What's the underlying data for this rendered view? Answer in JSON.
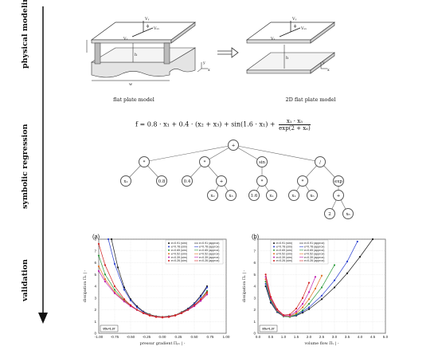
{
  "side_labels": {
    "physical": "physical modeling",
    "symbolic": "symbolic regression",
    "validation": "validation"
  },
  "physical": {
    "left_caption": "flat plate model",
    "right_caption": "2D flat plate model",
    "labels": {
      "vy": "Vᵧ",
      "vx": "Vₓ",
      "vs": "Vₛₓ",
      "phi": "ϕ",
      "h": "h",
      "w": "w",
      "y": "y",
      "x": "x",
      "z": "z"
    }
  },
  "symbolic": {
    "formula_lhs": "f = 0.8 · x₁ + 0.4 · (x₂ + x₃) + sin(1.6 · x₁) +",
    "formula_num": "x₁ · x₅",
    "formula_den": "exp(2 + x₆)",
    "nodes": {
      "root": "+",
      "a": "*",
      "b": "*",
      "c": "sin",
      "d": "/",
      "a1": "x₁",
      "a2": "0.8",
      "b1": "0.4",
      "b2": "+",
      "b21": "x₂",
      "b22": "x₃",
      "c1": "*",
      "c11": "1.6",
      "c12": "x₁",
      "d1": "*",
      "d2": "exp",
      "d11": "x₁",
      "d12": "x₅",
      "d21": "+",
      "d211": "2",
      "d212": "x₆"
    }
  },
  "validation": {
    "panel_a_label": "(a)",
    "panel_b_label": "(b)",
    "badge_a": "t/Dₕ=1.37",
    "badge_b": "t/Dₕ=1.37",
    "xlabel_a": "pressur gradient Πₚₓ | -",
    "xlabel_b": "volume flow Πᵥ | -",
    "ylabel": "dissipation Πₑ | -"
  },
  "chart_data": [
    {
      "type": "scatter",
      "title": "(a)",
      "xlabel": "pressur gradient Πₚₓ | -",
      "ylabel": "dissipation Πₑ | -",
      "xlim": [
        -1.0,
        1.0
      ],
      "ylim": [
        0,
        8
      ],
      "xticks": [
        -1.0,
        -0.75,
        -0.5,
        -0.25,
        0.0,
        0.25,
        0.5,
        0.75,
        1.0
      ],
      "yticks": [
        0,
        1,
        2,
        3,
        4,
        5,
        6,
        7,
        8
      ],
      "grid": true,
      "legend_position": "top-right",
      "annotation": "t/Dₕ=1.37",
      "legend_left": [
        "e=0.91 (sim)",
        "e=0.78 (sim)",
        "e=0.65 (sim)",
        "e=0.52 (sim)",
        "e=0.39 (sim)",
        "e=0.26 (sim)"
      ],
      "legend_right": [
        "e=0.91 (approx)",
        "e=0.78 (approx)",
        "e=0.65 (approx)",
        "e=0.52 (approx)",
        "e=0.39 (approx)",
        "e=0.26 (approx)"
      ],
      "series": [
        {
          "name": "e=0.91",
          "color": "#1a1a1a",
          "x": [
            -0.8,
            -0.7,
            -0.6,
            -0.5,
            -0.4,
            -0.3,
            -0.2,
            -0.1,
            0.0,
            0.1,
            0.2,
            0.3,
            0.4,
            0.5,
            0.6,
            0.7
          ],
          "y": [
            8.0,
            5.6,
            3.9,
            2.9,
            2.3,
            1.85,
            1.6,
            1.45,
            1.4,
            1.45,
            1.55,
            1.8,
            2.1,
            2.55,
            3.2,
            4.0
          ]
        },
        {
          "name": "e=0.78",
          "color": "#2a3fcf",
          "x": [
            -0.85,
            -0.75,
            -0.6,
            -0.5,
            -0.4,
            -0.3,
            -0.2,
            -0.1,
            0.0,
            0.1,
            0.2,
            0.3,
            0.4,
            0.5,
            0.6,
            0.7
          ],
          "y": [
            8.0,
            5.9,
            3.7,
            2.8,
            2.2,
            1.8,
            1.55,
            1.42,
            1.38,
            1.42,
            1.55,
            1.75,
            2.05,
            2.5,
            3.1,
            3.9
          ]
        },
        {
          "name": "e=0.65",
          "color": "#2a9a3a",
          "x": [
            -1.0,
            -0.9,
            -0.75,
            -0.6,
            -0.5,
            -0.4,
            -0.3,
            -0.2,
            -0.1,
            0.0,
            0.1,
            0.2,
            0.3,
            0.4,
            0.5,
            0.6,
            0.7
          ],
          "y": [
            6.6,
            5.0,
            3.7,
            2.8,
            2.35,
            2.0,
            1.75,
            1.55,
            1.42,
            1.38,
            1.42,
            1.55,
            1.75,
            2.0,
            2.4,
            2.9,
            3.6
          ]
        },
        {
          "name": "e=0.52",
          "color": "#e07020",
          "x": [
            -1.0,
            -0.9,
            -0.75,
            -0.6,
            -0.5,
            -0.4,
            -0.3,
            -0.2,
            -0.1,
            0.0,
            0.1,
            0.2,
            0.3,
            0.4,
            0.5,
            0.6,
            0.7
          ],
          "y": [
            5.7,
            4.6,
            3.5,
            2.75,
            2.35,
            2.0,
            1.75,
            1.55,
            1.42,
            1.38,
            1.42,
            1.55,
            1.75,
            2.0,
            2.35,
            2.8,
            3.4
          ]
        },
        {
          "name": "e=0.39",
          "color": "#c020b0",
          "x": [
            -1.0,
            -0.9,
            -0.75,
            -0.6,
            -0.5,
            -0.4,
            -0.3,
            -0.2,
            -0.1,
            0.0,
            0.1,
            0.2,
            0.3,
            0.4,
            0.5,
            0.6,
            0.7
          ],
          "y": [
            5.3,
            4.4,
            3.4,
            2.7,
            2.3,
            1.98,
            1.72,
            1.52,
            1.4,
            1.36,
            1.4,
            1.52,
            1.72,
            1.98,
            2.3,
            2.75,
            3.3
          ]
        },
        {
          "name": "e=0.26",
          "color": "#d02020",
          "x": [
            -1.0,
            -0.9,
            -0.75,
            -0.6,
            -0.5,
            -0.4,
            -0.3,
            -0.2,
            -0.1,
            0.0,
            0.1,
            0.2,
            0.3,
            0.4,
            0.5,
            0.6,
            0.7
          ],
          "y": [
            7.6,
            5.8,
            4.0,
            2.9,
            2.4,
            2.0,
            1.7,
            1.5,
            1.38,
            1.34,
            1.38,
            1.5,
            1.7,
            2.0,
            2.4,
            2.9,
            3.5
          ]
        }
      ]
    },
    {
      "type": "scatter",
      "title": "(b)",
      "xlabel": "volume flow Πᵥ | -",
      "ylabel": "dissipation Πₑ | -",
      "xlim": [
        0.0,
        5.0
      ],
      "ylim": [
        0,
        8
      ],
      "xticks": [
        0.0,
        0.5,
        1.0,
        1.5,
        2.0,
        2.5,
        3.0,
        3.5,
        4.0,
        4.5,
        5.0
      ],
      "yticks": [
        0,
        1,
        2,
        3,
        4,
        5,
        6,
        7,
        8
      ],
      "grid": true,
      "legend_position": "top-left",
      "annotation": "t/Dₕ=1.37",
      "legend_left": [
        "e=0.91 (sim)",
        "e=0.78 (sim)",
        "e=0.65 (sim)",
        "e=0.52 (sim)",
        "e=0.39 (sim)",
        "e=0.26 (sim)"
      ],
      "legend_right": [
        "e=0.91 (approx)",
        "e=0.78 (approx)",
        "e=0.65 (approx)",
        "e=0.52 (approx)",
        "e=0.39 (approx)",
        "e=0.26 (approx)"
      ],
      "series": [
        {
          "name": "e=0.91",
          "color": "#1a1a1a",
          "x": [
            0.3,
            0.5,
            0.75,
            1.0,
            1.25,
            1.5,
            1.75,
            2.0,
            2.5,
            3.0,
            3.5,
            4.0,
            4.5
          ],
          "y": [
            4.0,
            2.6,
            1.8,
            1.45,
            1.4,
            1.5,
            1.75,
            2.05,
            2.9,
            3.9,
            5.1,
            6.5,
            8.0
          ]
        },
        {
          "name": "e=0.78",
          "color": "#2a3fcf",
          "x": [
            0.3,
            0.5,
            0.75,
            1.0,
            1.25,
            1.5,
            1.75,
            2.0,
            2.5,
            3.0,
            3.5,
            3.9
          ],
          "y": [
            4.2,
            2.7,
            1.85,
            1.45,
            1.4,
            1.55,
            1.85,
            2.2,
            3.2,
            4.5,
            6.1,
            7.8
          ]
        },
        {
          "name": "e=0.65",
          "color": "#2a9a3a",
          "x": [
            0.3,
            0.5,
            0.75,
            1.0,
            1.25,
            1.5,
            1.75,
            2.0,
            2.5,
            3.0
          ],
          "y": [
            4.4,
            2.8,
            1.9,
            1.45,
            1.4,
            1.6,
            1.95,
            2.5,
            3.9,
            5.8
          ]
        },
        {
          "name": "e=0.52",
          "color": "#e07020",
          "x": [
            0.3,
            0.5,
            0.75,
            1.0,
            1.25,
            1.5,
            1.75,
            2.0,
            2.25,
            2.5
          ],
          "y": [
            4.6,
            2.9,
            1.95,
            1.48,
            1.45,
            1.7,
            2.2,
            2.9,
            3.8,
            4.9
          ]
        },
        {
          "name": "e=0.39",
          "color": "#c020b0",
          "x": [
            0.3,
            0.5,
            0.75,
            1.0,
            1.25,
            1.5,
            1.75,
            2.0,
            2.25
          ],
          "y": [
            4.8,
            3.0,
            2.0,
            1.5,
            1.5,
            1.85,
            2.5,
            3.5,
            4.8
          ]
        },
        {
          "name": "e=0.26",
          "color": "#d02020",
          "x": [
            0.3,
            0.5,
            0.75,
            1.0,
            1.25,
            1.5,
            1.75,
            2.0
          ],
          "y": [
            5.0,
            3.1,
            2.05,
            1.55,
            1.6,
            2.1,
            3.0,
            4.3
          ]
        }
      ]
    }
  ]
}
